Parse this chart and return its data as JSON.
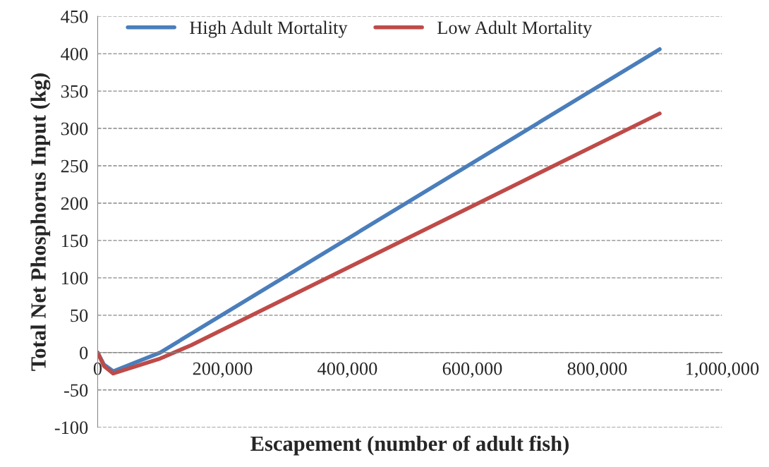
{
  "chart_data": {
    "type": "line",
    "xlabel": "Escapement (number of adult fish)",
    "ylabel": "Total Net Phosphorus Input (kg)",
    "series": [
      {
        "name": "High Adult Mortality",
        "color": "#4a7ebb",
        "x": [
          0,
          10000,
          25000,
          100000,
          900000
        ],
        "values": [
          0,
          -16,
          -25,
          0,
          406
        ]
      },
      {
        "name": "Low Adult Mortality",
        "color": "#be4b48",
        "x": [
          0,
          10000,
          25000,
          100000,
          150000,
          900000
        ],
        "values": [
          0,
          -18,
          -28,
          -8,
          10,
          320
        ]
      }
    ],
    "xlim": [
      0,
      1000000
    ],
    "xticks": [
      {
        "value": 0,
        "label": "0"
      },
      {
        "value": 200000,
        "label": "200,000"
      },
      {
        "value": 400000,
        "label": "400,000"
      },
      {
        "value": 600000,
        "label": "600,000"
      },
      {
        "value": 800000,
        "label": "800,000"
      },
      {
        "value": 1000000,
        "label": "1,000,000"
      }
    ],
    "ylim": [
      -100,
      450
    ],
    "yticks": [
      -100,
      -50,
      0,
      50,
      100,
      150,
      200,
      250,
      300,
      350,
      400,
      450
    ],
    "grid": "y",
    "legend": "top",
    "line_style": "solid",
    "marker": "none"
  }
}
